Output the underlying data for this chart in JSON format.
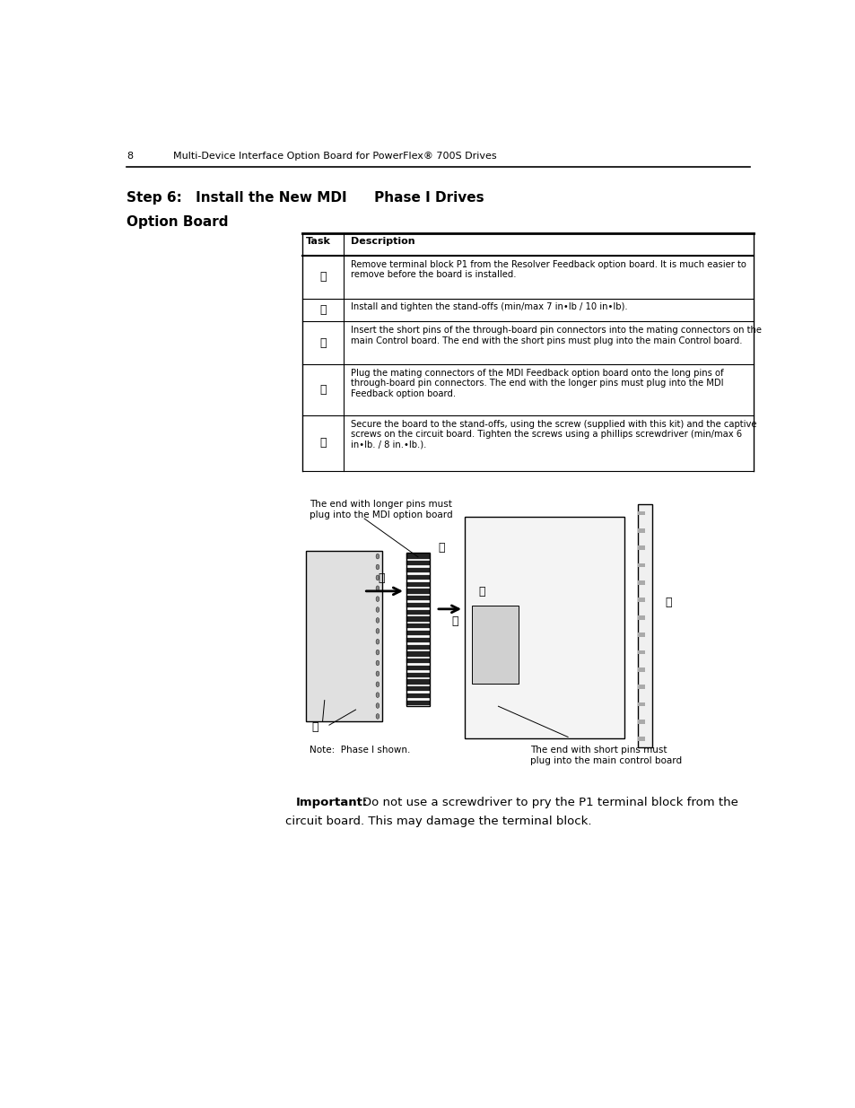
{
  "page_num": "8",
  "header_text": "Multi-Device Interface Option Board for PowerFlex® 700S Drives",
  "section_title_line1": "Step 6: Install the New MDI  Phase I Drives",
  "section_title_line2": "Option Board",
  "table_headers": [
    "Task",
    "Description"
  ],
  "table_rows": [
    {
      "task": "Ⓐ",
      "desc": "Remove terminal block P1 from the Resolver Feedback option board. It is much easier to\nremove before the board is installed."
    },
    {
      "task": "Ⓑ",
      "desc": "Install and tighten the stand-offs (min/max 7 in•lb / 10 in•lb)."
    },
    {
      "task": "Ⓒ",
      "desc": "Insert the short pins of the through-board pin connectors into the mating connectors on the\nmain Control board. The end with the short pins must plug into the main Control board."
    },
    {
      "task": "Ⓓ",
      "desc": "Plug the mating connectors of the MDI Feedback option board onto the long pins of\nthrough-board pin connectors. The end with the longer pins must plug into the MDI\nFeedback option board."
    },
    {
      "task": "Ⓔ",
      "desc": "Secure the board to the stand-offs, using the screw (supplied with this kit) and the captive\nscrews on the circuit board. Tighten the screws using a phillips screwdriver (min/max 6\nin•lb. / 8 in.•lb.)."
    }
  ],
  "caption_top_left": "The end with longer pins must\nplug into the MDI option board",
  "caption_bottom_left": "Note:  Phase I shown.",
  "caption_bottom_right": "The end with short pins must\nplug into the main control board",
  "important_bold": "Important:",
  "important_text_1": "Do not use a screwdriver to pry the P1 terminal block from the",
  "important_text_2": "circuit board. This may damage the terminal block.",
  "bg_color": "#ffffff",
  "text_color": "#000000",
  "font_size_header": 8,
  "font_size_body": 7.5,
  "font_size_title": 11,
  "font_size_page": 8
}
